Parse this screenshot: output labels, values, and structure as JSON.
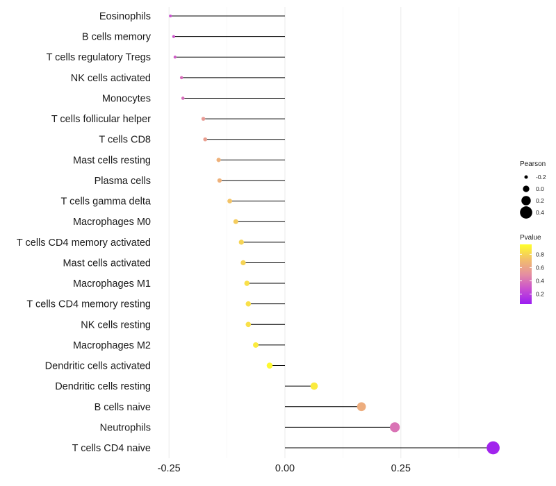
{
  "chart_data": {
    "type": "lollipop",
    "categories": [
      "Eosinophils",
      "B cells memory",
      "T cells regulatory  Tregs",
      "NK cells activated",
      "Monocytes",
      "T cells follicular helper",
      "T cells CD8",
      "Mast cells resting",
      "Plasma cells",
      "T cells gamma delta",
      "Macrophages M0",
      "T cells CD4 memory activated",
      "Mast cells activated",
      "Macrophages M1",
      "T cells CD4 memory resting",
      "NK cells resting",
      "Macrophages M2",
      "Dendritic cells activated",
      "Dendritic cells resting",
      "B cells naive",
      "Neutrophils",
      "T cells CD4 naive"
    ],
    "values": [
      -0.247,
      -0.24,
      -0.237,
      -0.223,
      -0.22,
      -0.176,
      -0.172,
      -0.143,
      -0.141,
      -0.119,
      -0.106,
      -0.094,
      -0.09,
      -0.082,
      -0.079,
      -0.079,
      -0.063,
      -0.033,
      0.063,
      0.165,
      0.237,
      0.449
    ],
    "pvalues": [
      0.28,
      0.3,
      0.32,
      0.38,
      0.38,
      0.55,
      0.57,
      0.66,
      0.66,
      0.74,
      0.77,
      0.8,
      0.8,
      0.84,
      0.84,
      0.84,
      0.88,
      0.93,
      0.88,
      0.64,
      0.4,
      0.08
    ],
    "xlabel": "",
    "ylabel": "",
    "xlim": [
      -0.25,
      0.49
    ],
    "x_ticks": [
      {
        "value": -0.25,
        "label": "-0.25"
      },
      {
        "value": 0,
        "label": "0.00"
      },
      {
        "value": 0.25,
        "label": "0.25"
      }
    ],
    "grid": true,
    "legend_position": "right",
    "size_legend": {
      "title": "Pearson",
      "entries": [
        {
          "value": -0.2,
          "label": "-0.2"
        },
        {
          "value": 0.0,
          "label": "0.0"
        },
        {
          "value": 0.2,
          "label": "0.2"
        },
        {
          "value": 0.4,
          "label": "0.4"
        }
      ]
    },
    "color_legend": {
      "title": "Pvalue",
      "range": [
        0.05,
        0.95
      ],
      "ticks": [
        {
          "value": 0.2,
          "label": "0.2"
        },
        {
          "value": 0.4,
          "label": "0.4"
        },
        {
          "value": 0.6,
          "label": "0.6"
        },
        {
          "value": 0.8,
          "label": "0.8"
        }
      ],
      "colors": [
        "#9b1df2",
        "#c94fd0",
        "#e58fa0",
        "#f2bf6a",
        "#ffff2a"
      ]
    },
    "stem_color": "#000000"
  }
}
